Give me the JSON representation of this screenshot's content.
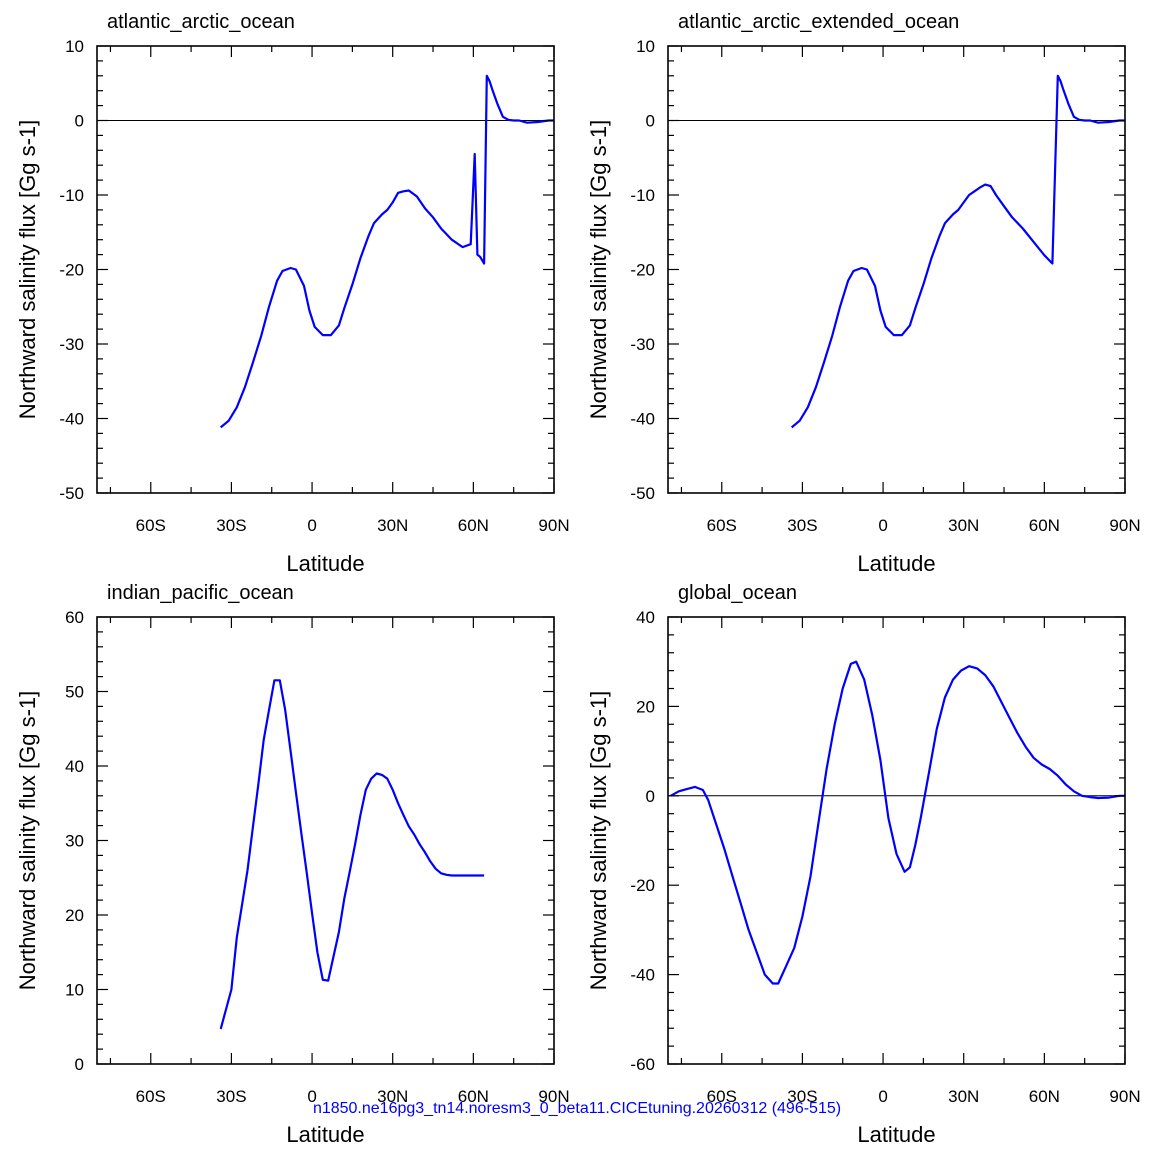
{
  "footer": "n1850.ne16pg3_tn14.noresm3_0_beta11.CICEtuning.20260312 (496-515)",
  "line_color": "#0000ff",
  "chart_data": [
    {
      "type": "line",
      "title": "atlantic_arctic_ocean",
      "xlabel": "Latitude",
      "ylabel": "Northward salinity flux [Gg s-1]",
      "xlim": [
        -80,
        90
      ],
      "ylim": [
        -50,
        10
      ],
      "xticks": [
        -60,
        -30,
        0,
        30,
        60,
        90
      ],
      "xtick_labels": [
        "60S",
        "30S",
        "0",
        "30N",
        "60N",
        "90N"
      ],
      "yticks": [
        -50,
        -40,
        -30,
        -20,
        -10,
        0,
        10
      ],
      "ytick_labels": [
        "-50",
        "-40",
        "-30",
        "-20",
        "-10",
        "0",
        "10"
      ],
      "zero_line": true,
      "series": [
        {
          "x": [
            -34,
            -31,
            -28,
            -25,
            -22,
            -19,
            -16,
            -13,
            -11,
            -8,
            -6,
            -3,
            -1,
            1,
            4,
            7,
            10,
            12,
            15,
            18,
            21,
            23,
            26,
            28,
            30,
            32,
            34,
            36,
            39,
            42,
            45,
            48,
            52,
            56,
            59,
            60.5,
            61.5,
            62.5,
            64,
            65,
            66,
            67,
            69,
            71,
            73,
            75,
            77,
            80,
            84,
            88,
            90
          ],
          "y": [
            -41.2,
            -40.3,
            -38.5,
            -35.8,
            -32.5,
            -29,
            -25,
            -21.5,
            -20.2,
            -19.8,
            -20,
            -22.2,
            -25.5,
            -27.7,
            -28.8,
            -28.8,
            -27.5,
            -25.2,
            -22,
            -18.5,
            -15.5,
            -13.8,
            -12.6,
            -12,
            -11,
            -9.7,
            -9.5,
            -9.4,
            -10.2,
            -11.8,
            -13,
            -14.5,
            -16,
            -17,
            -16.6,
            -4.5,
            -18,
            -18.3,
            -19.2,
            6,
            5.3,
            4.2,
            2.2,
            0.5,
            0.1,
            0,
            0,
            -0.3,
            -0.2,
            0,
            0
          ]
        }
      ]
    },
    {
      "type": "line",
      "title": "atlantic_arctic_extended_ocean",
      "xlabel": "Latitude",
      "ylabel": "Northward salinity flux [Gg s-1]",
      "xlim": [
        -80,
        90
      ],
      "ylim": [
        -50,
        10
      ],
      "xticks": [
        -60,
        -30,
        0,
        30,
        60,
        90
      ],
      "xtick_labels": [
        "60S",
        "30S",
        "0",
        "30N",
        "60N",
        "90N"
      ],
      "yticks": [
        -50,
        -40,
        -30,
        -20,
        -10,
        0,
        10
      ],
      "ytick_labels": [
        "-50",
        "-40",
        "-30",
        "-20",
        "-10",
        "0",
        "10"
      ],
      "zero_line": true,
      "series": [
        {
          "x": [
            -34,
            -31,
            -28,
            -25,
            -22,
            -19,
            -16,
            -13,
            -11,
            -8,
            -6,
            -3,
            -1,
            1,
            4,
            7,
            10,
            12,
            15,
            18,
            21,
            23,
            26,
            28,
            30,
            32,
            34,
            36,
            38,
            40,
            42,
            45,
            48,
            52,
            56,
            60,
            63,
            65,
            66,
            67,
            69,
            71,
            73,
            75,
            77,
            80,
            84,
            88,
            90
          ],
          "y": [
            -41.2,
            -40.3,
            -38.5,
            -35.8,
            -32.5,
            -29,
            -25,
            -21.5,
            -20.2,
            -19.8,
            -20,
            -22.2,
            -25.5,
            -27.7,
            -28.8,
            -28.8,
            -27.5,
            -25.2,
            -22,
            -18.5,
            -15.5,
            -13.8,
            -12.6,
            -12,
            -11,
            -10,
            -9.5,
            -9,
            -8.6,
            -8.8,
            -10,
            -11.5,
            -13,
            -14.5,
            -16.3,
            -18.1,
            -19.2,
            6,
            5.3,
            4.2,
            2.2,
            0.5,
            0.1,
            0,
            0,
            -0.3,
            -0.2,
            0,
            0
          ]
        }
      ]
    },
    {
      "type": "line",
      "title": "indian_pacific_ocean",
      "xlabel": "Latitude",
      "ylabel": "Northward salinity flux [Gg s-1]",
      "xlim": [
        -80,
        90
      ],
      "ylim": [
        0,
        60
      ],
      "xticks": [
        -60,
        -30,
        0,
        30,
        60,
        90
      ],
      "xtick_labels": [
        "60S",
        "30S",
        "0",
        "30N",
        "60N",
        "90N"
      ],
      "yticks": [
        0,
        10,
        20,
        30,
        40,
        50,
        60
      ],
      "ytick_labels": [
        "0",
        "10",
        "20",
        "30",
        "40",
        "50",
        "60"
      ],
      "zero_line": false,
      "series": [
        {
          "x": [
            -34,
            -30,
            -28,
            -26,
            -24,
            -22,
            -20,
            -18,
            -16,
            -14,
            -12,
            -10,
            -8,
            -6,
            -4,
            -2,
            0,
            2,
            4,
            6,
            8,
            10,
            12,
            14,
            16,
            18,
            20,
            22,
            24,
            26,
            28,
            30,
            32,
            34,
            36,
            38,
            40,
            42,
            44,
            46,
            48,
            50,
            52,
            54,
            56,
            58,
            60,
            62,
            64
          ],
          "y": [
            4.7,
            10,
            17,
            21.5,
            26,
            31.8,
            37.5,
            43.5,
            47.5,
            51.5,
            51.5,
            47.5,
            42,
            36.5,
            31,
            25.7,
            20.2,
            15,
            11.3,
            11.2,
            14.5,
            17.7,
            22.2,
            25.8,
            29.5,
            33.4,
            36.8,
            38.3,
            39,
            38.8,
            38.3,
            36.8,
            35,
            33.4,
            31.9,
            30.8,
            29.5,
            28.4,
            27.2,
            26.2,
            25.6,
            25.4,
            25.3,
            25.3,
            25.3,
            25.3,
            25.3,
            25.3,
            25.3
          ]
        }
      ]
    },
    {
      "type": "line",
      "title": "global_ocean",
      "xlabel": "Latitude",
      "ylabel": "Northward salinity flux [Gg s-1]",
      "xlim": [
        -80,
        90
      ],
      "ylim": [
        -60,
        40
      ],
      "xticks": [
        -60,
        -30,
        0,
        30,
        60,
        90
      ],
      "xtick_labels": [
        "60S",
        "30S",
        "0",
        "30N",
        "60N",
        "90N"
      ],
      "yticks": [
        -60,
        -40,
        -20,
        0,
        20,
        40
      ],
      "ytick_labels": [
        "-60",
        "-40",
        "-20",
        "0",
        "20",
        "40"
      ],
      "zero_line": true,
      "series": [
        {
          "x": [
            -79,
            -76,
            -73,
            -70,
            -67,
            -65,
            -62,
            -59,
            -56,
            -53,
            -50,
            -47,
            -44,
            -41,
            -39,
            -36,
            -33,
            -30,
            -27,
            -24,
            -21,
            -18,
            -15,
            -12,
            -10,
            -7,
            -4,
            -1,
            2,
            5,
            8,
            10,
            12,
            14,
            17,
            20,
            23,
            26,
            29,
            32,
            35,
            38,
            41,
            44,
            47,
            50,
            53,
            56,
            59,
            62,
            65,
            68,
            71,
            74,
            77,
            80,
            84,
            88,
            90
          ],
          "y": [
            0,
            1,
            1.5,
            2,
            1.3,
            -1,
            -6.5,
            -12,
            -18,
            -24,
            -30,
            -35,
            -40,
            -42,
            -42,
            -38,
            -34,
            -27,
            -18,
            -6,
            6,
            16,
            24,
            29.5,
            30,
            26,
            18,
            8,
            -5,
            -13,
            -17,
            -16,
            -11,
            -5,
            5,
            15,
            22,
            26,
            28,
            29,
            28.5,
            27,
            24.5,
            21,
            17.5,
            14,
            11,
            8.5,
            7,
            6,
            4.5,
            2.5,
            1,
            0,
            -0.3,
            -0.5,
            -0.4,
            0,
            0
          ]
        }
      ]
    }
  ]
}
